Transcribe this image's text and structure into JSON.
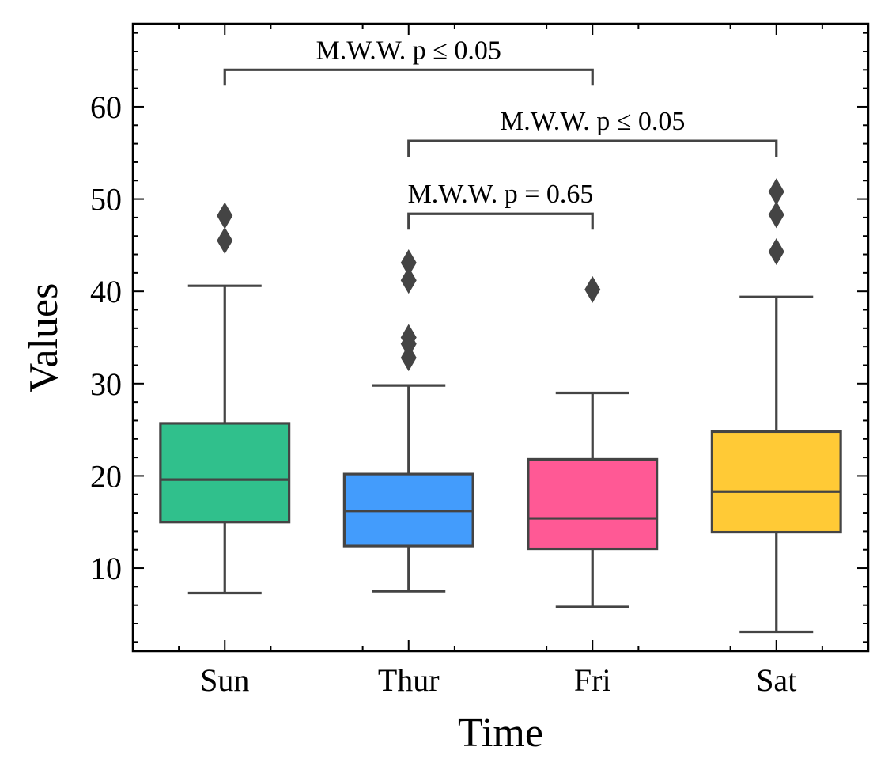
{
  "chart_data": {
    "type": "box",
    "xlabel": "Time",
    "ylabel": "Values",
    "categories": [
      "Sun",
      "Thur",
      "Fri",
      "Sat"
    ],
    "ylim": [
      1,
      69
    ],
    "yticks": [
      10,
      20,
      30,
      40,
      50,
      60
    ],
    "grid": false,
    "colors": {
      "Sun": "#30c08c",
      "Thur": "#439cfc",
      "Fri": "#ff5995",
      "Sat": "#ffca36",
      "lines": "#444444"
    },
    "boxes": [
      {
        "category": "Sun",
        "whisker_low": 7.3,
        "q1": 15.0,
        "median": 19.6,
        "q3": 25.7,
        "whisker_high": 40.6,
        "outliers": [
          45.5,
          48.2
        ]
      },
      {
        "category": "Thur",
        "whisker_low": 7.5,
        "q1": 12.4,
        "median": 16.2,
        "q3": 20.2,
        "whisker_high": 29.8,
        "outliers": [
          32.8,
          34.3,
          35.0,
          41.2,
          43.1
        ]
      },
      {
        "category": "Fri",
        "whisker_low": 5.8,
        "q1": 12.1,
        "median": 15.4,
        "q3": 21.8,
        "whisker_high": 29.0,
        "outliers": [
          40.2
        ]
      },
      {
        "category": "Sat",
        "whisker_low": 3.1,
        "q1": 13.9,
        "median": 18.3,
        "q3": 24.8,
        "whisker_high": 39.4,
        "outliers": [
          44.3,
          48.3,
          50.8
        ]
      }
    ],
    "annotations": [
      {
        "from": "Thur",
        "to": "Fri",
        "y": 48.4,
        "text": "M.W.W. p = 0.65"
      },
      {
        "from": "Thur",
        "to": "Sat",
        "y": 56.3,
        "text": "M.W.W. p ≤ 0.05"
      },
      {
        "from": "Sun",
        "to": "Fri",
        "y": 64.0,
        "text": "M.W.W. p ≤ 0.05"
      }
    ]
  }
}
